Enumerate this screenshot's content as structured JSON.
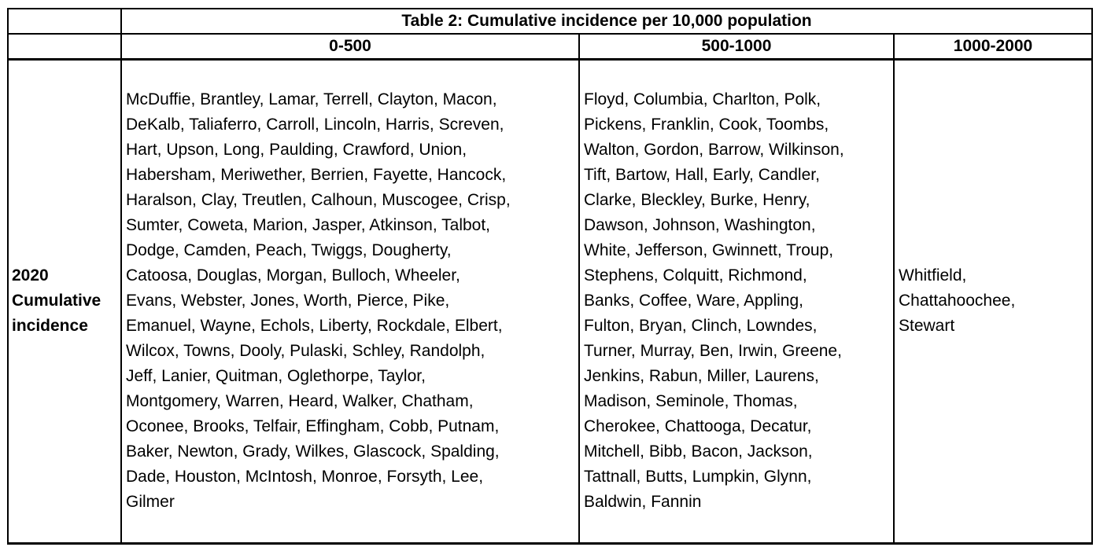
{
  "table": {
    "title": "Table 2: Cumulative incidence per 10,000 population",
    "columns": [
      "0-500",
      "500-1000",
      "1000-2000"
    ],
    "row_label_lines": [
      "2020",
      "Cumulative",
      "incidence"
    ],
    "cells": [
      {
        "lines": [
          "McDuffie, Brantley, Lamar, Terrell, Clayton, Macon,",
          "DeKalb, Taliaferro, Carroll, Lincoln, Harris, Screven,",
          "Hart, Upson, Long, Paulding, Crawford, Union,",
          "Habersham, Meriwether, Berrien, Fayette, Hancock,",
          "Haralson, Clay, Treutlen, Calhoun, Muscogee, Crisp,",
          "Sumter, Coweta, Marion, Jasper, Atkinson, Talbot,",
          "Dodge, Camden, Peach, Twiggs, Dougherty,",
          "Catoosa, Douglas, Morgan, Bulloch, Wheeler,",
          "Evans, Webster, Jones, Worth, Pierce, Pike,",
          "Emanuel, Wayne, Echols, Liberty, Rockdale, Elbert,",
          "Wilcox, Towns, Dooly, Pulaski, Schley, Randolph,",
          "Jeff, Lanier, Quitman, Oglethorpe, Taylor,",
          "Montgomery, Warren, Heard, Walker, Chatham,",
          "Oconee, Brooks, Telfair, Effingham, Cobb, Putnam,",
          "Baker, Newton, Grady, Wilkes, Glascock, Spalding,",
          "Dade, Houston, McIntosh, Monroe, Forsyth, Lee,",
          "Gilmer"
        ]
      },
      {
        "lines": [
          "Floyd, Columbia, Charlton, Polk,",
          "Pickens, Franklin, Cook, Toombs,",
          "Walton, Gordon, Barrow, Wilkinson,",
          "Tift, Bartow, Hall, Early, Candler,",
          "Clarke, Bleckley, Burke, Henry,",
          "Dawson, Johnson, Washington,",
          "White, Jefferson, Gwinnett, Troup,",
          "Stephens, Colquitt, Richmond,",
          "Banks, Coffee, Ware, Appling,",
          "Fulton, Bryan, Clinch, Lowndes,",
          "Turner, Murray, Ben, Irwin, Greene,",
          "Jenkins, Rabun, Miller, Laurens,",
          "Madison, Seminole, Thomas,",
          "Cherokee, Chattooga, Decatur,",
          "Mitchell, Bibb, Bacon, Jackson,",
          "Tattnall, Butts, Lumpkin, Glynn,",
          "Baldwin, Fannin"
        ]
      },
      {
        "lines": [
          "Whitfield,",
          "Chattahoochee,",
          "Stewart"
        ]
      }
    ]
  }
}
